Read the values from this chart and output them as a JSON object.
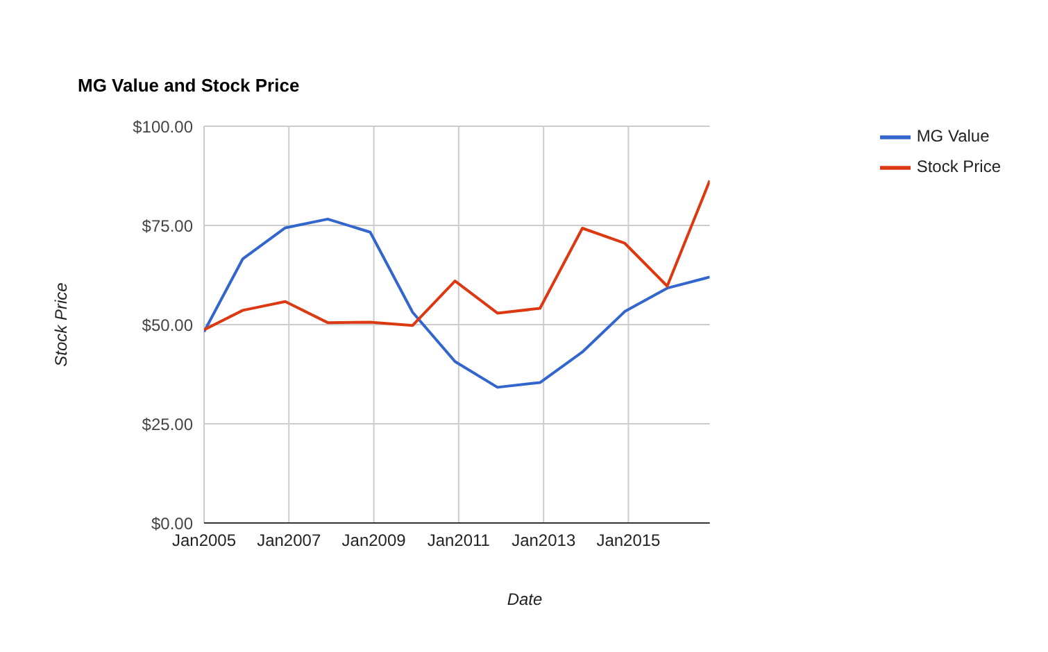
{
  "chart_data": {
    "type": "line",
    "title": "MG Value and Stock Price",
    "xlabel": "Date",
    "ylabel": "Stock Price",
    "x": [
      "2005-01",
      "2005-12",
      "2006-12",
      "2007-12",
      "2008-12",
      "2009-12",
      "2010-12",
      "2011-12",
      "2012-12",
      "2013-12",
      "2014-12",
      "2015-12",
      "2016-12"
    ],
    "series": [
      {
        "name": "MG Value",
        "color": "#3366cc",
        "values": [
          48.2,
          66.6,
          74.4,
          76.6,
          73.3,
          53.1,
          40.7,
          34.2,
          35.4,
          43.1,
          53.3,
          59.2,
          62.0
        ]
      },
      {
        "name": "Stock Price",
        "color": "#dc3912",
        "values": [
          48.7,
          53.6,
          55.8,
          50.5,
          50.6,
          49.8,
          61.0,
          52.9,
          54.1,
          74.3,
          70.5,
          59.7,
          86.3
        ]
      }
    ],
    "xlim": [
      "2005-01",
      "2016-12"
    ],
    "xticks": [
      {
        "value": "2005-01",
        "label": "Jan2005"
      },
      {
        "value": "2007-01",
        "label": "Jan2007"
      },
      {
        "value": "2009-01",
        "label": "Jan2009"
      },
      {
        "value": "2011-01",
        "label": "Jan2011"
      },
      {
        "value": "2013-01",
        "label": "Jan2013"
      },
      {
        "value": "2015-01",
        "label": "Jan2015"
      }
    ],
    "ylim": [
      0,
      100
    ],
    "yticks": [
      {
        "value": 0,
        "label": "$0.00"
      },
      {
        "value": 25,
        "label": "$25.00"
      },
      {
        "value": 50,
        "label": "$50.00"
      },
      {
        "value": 75,
        "label": "$75.00"
      },
      {
        "value": 100,
        "label": "$100.00"
      }
    ],
    "grid": true,
    "legend": "top right",
    "marker": "none",
    "line_style": "solid"
  }
}
